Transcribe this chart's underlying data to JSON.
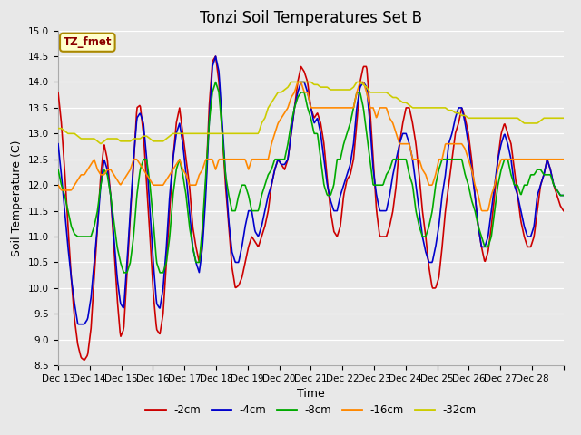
{
  "title": "Tonzi Soil Temperatures Set B",
  "xlabel": "Time",
  "ylabel": "Soil Temperature (C)",
  "ylim": [
    8.5,
    15.0
  ],
  "yticks": [
    8.5,
    9.0,
    9.5,
    10.0,
    10.5,
    11.0,
    11.5,
    12.0,
    12.5,
    13.0,
    13.5,
    14.0,
    14.5,
    15.0
  ],
  "xtick_labels": [
    "Dec 13",
    "Dec 14",
    "Dec 15",
    "Dec 16",
    "Dec 17",
    "Dec 18",
    "Dec 19",
    "Dec 20",
    "Dec 21",
    "Dec 22",
    "Dec 23",
    "Dec 24",
    "Dec 25",
    "Dec 26",
    "Dec 27",
    "Dec 28"
  ],
  "line_colors": {
    "-2cm": "#cc0000",
    "-4cm": "#0000cc",
    "-8cm": "#00aa00",
    "-16cm": "#ff8800",
    "-32cm": "#cccc00"
  },
  "legend_labels": [
    "-2cm",
    "-4cm",
    "-8cm",
    "-16cm",
    "-32cm"
  ],
  "annotation_text": "TZ_fmet",
  "annotation_bg": "#ffffcc",
  "annotation_border": "#aa8800",
  "background_color": "#e8e8e8",
  "plot_bg": "#e8e8e8",
  "grid_color": "#ffffff",
  "title_fontsize": 12,
  "axis_fontsize": 9,
  "figsize": [
    6.4,
    4.8
  ],
  "dpi": 100
}
